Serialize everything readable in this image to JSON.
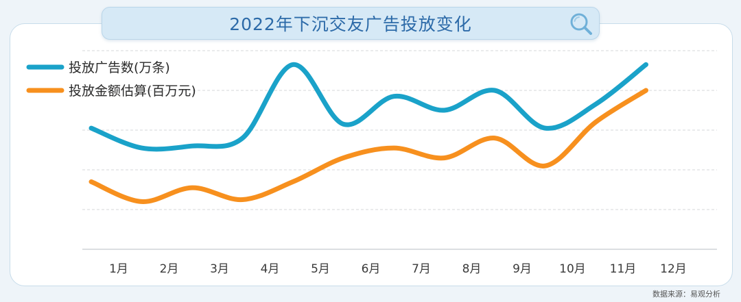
{
  "chart_data": {
    "type": "line",
    "title": "2022年下沉交友广告投放变化",
    "categories": [
      "1月",
      "2月",
      "3月",
      "4月",
      "5月",
      "6月",
      "7月",
      "8月",
      "9月",
      "10月",
      "11月",
      "12月"
    ],
    "series": [
      {
        "name": "投放广告数(万条)",
        "color": "#1aa2c9",
        "values": [
          61,
          51,
          52,
          56,
          93,
          63,
          77,
          70,
          80,
          61,
          73,
          93
        ]
      },
      {
        "name": "投放金额估算(百万元)",
        "color": "#f7901e",
        "values": [
          34,
          24,
          31,
          25,
          34,
          46,
          51,
          46,
          56,
          42,
          64,
          80
        ]
      }
    ],
    "ylim": [
      0,
      100
    ],
    "grid": true,
    "legend": "top-left",
    "xlabel": "",
    "ylabel": ""
  },
  "source_text": "数据来源：易观分析",
  "icons": {
    "search": "search-icon"
  }
}
